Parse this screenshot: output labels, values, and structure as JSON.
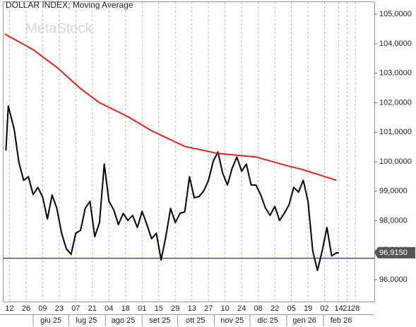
{
  "chart_data": {
    "type": "line",
    "title": "DOLLAR INDEX; Moving Average",
    "watermark": "MetaStock",
    "xlim": [
      "2025-05-07",
      "2026-03-16"
    ],
    "ylim": [
      95.26,
      105.41
    ],
    "yticks": [
      {
        "value": 96,
        "label": "96,0000"
      },
      {
        "value": 97,
        "label": "97,0000"
      },
      {
        "value": 98,
        "label": "98,0000"
      },
      {
        "value": 99,
        "label": "99,0000"
      },
      {
        "value": 100,
        "label": "100,0000"
      },
      {
        "value": 101,
        "label": "101,0000"
      },
      {
        "value": 102,
        "label": "102,0000"
      },
      {
        "value": 103,
        "label": "103,0000"
      },
      {
        "value": 104,
        "label": "104,0000"
      },
      {
        "value": 105,
        "label": "105,0000"
      }
    ],
    "xticks": [
      {
        "value": "2025-05-12",
        "label": "12"
      },
      {
        "value": "2025-05-26",
        "label": "26"
      },
      {
        "value": "2025-06-09",
        "label": "09"
      },
      {
        "value": "2025-06-23",
        "label": "23"
      },
      {
        "value": "2025-07-07",
        "label": "07"
      },
      {
        "value": "2025-07-21",
        "label": "21"
      },
      {
        "value": "2025-08-04",
        "label": "04"
      },
      {
        "value": "2025-08-18",
        "label": "18"
      },
      {
        "value": "2025-09-01",
        "label": "01"
      },
      {
        "value": "2025-09-15",
        "label": "15"
      },
      {
        "value": "2025-09-29",
        "label": "29"
      },
      {
        "value": "2025-10-13",
        "label": "13"
      },
      {
        "value": "2025-10-27",
        "label": "27"
      },
      {
        "value": "2025-11-10",
        "label": "10"
      },
      {
        "value": "2025-11-24",
        "label": "24"
      },
      {
        "value": "2025-12-08",
        "label": "08"
      },
      {
        "value": "2025-12-22",
        "label": "22"
      },
      {
        "value": "2026-01-05",
        "label": "05"
      },
      {
        "value": "2026-01-19",
        "label": "19"
      },
      {
        "value": "2026-02-02",
        "label": "02"
      },
      {
        "value": "2026-02-14",
        "label": "14"
      },
      {
        "value": "2026-02-21",
        "label": "21"
      },
      {
        "value": "2026-02-28",
        "label": "28"
      }
    ],
    "month_ticks": [
      {
        "value": "2025-06-01",
        "label": "giu 25"
      },
      {
        "value": "2025-07-01",
        "label": "lug 25"
      },
      {
        "value": "2025-08-01",
        "label": "ago 25"
      },
      {
        "value": "2025-09-01",
        "label": "set 25"
      },
      {
        "value": "2025-10-01",
        "label": "ott 25"
      },
      {
        "value": "2025-11-01",
        "label": "nov 25"
      },
      {
        "value": "2025-12-01",
        "label": "dic 25"
      },
      {
        "value": "2026-01-01",
        "label": "gen 26"
      },
      {
        "value": "2026-02-01",
        "label": "feb 26"
      }
    ],
    "grid": true,
    "reference_line": {
      "value": 96.73,
      "color": "#2b3a8f"
    },
    "price_tag": {
      "value": 96.915,
      "label": "96,9150"
    },
    "series": [
      {
        "color": "#000000",
        "x": [
          "2025-05-09",
          "2025-05-11",
          "2025-05-16",
          "2025-05-20",
          "2025-05-24",
          "2025-05-28",
          "2025-06-01",
          "2025-06-05",
          "2025-06-09",
          "2025-06-13",
          "2025-06-17",
          "2025-06-21",
          "2025-06-25",
          "2025-06-29",
          "2025-07-03",
          "2025-07-07",
          "2025-07-11",
          "2025-07-15",
          "2025-07-19",
          "2025-07-23",
          "2025-07-27",
          "2025-07-31",
          "2025-08-04",
          "2025-08-08",
          "2025-08-12",
          "2025-08-16",
          "2025-08-20",
          "2025-08-24",
          "2025-08-28",
          "2025-09-01",
          "2025-09-05",
          "2025-09-09",
          "2025-09-13",
          "2025-09-17",
          "2025-09-21",
          "2025-09-25",
          "2025-09-29",
          "2025-10-03",
          "2025-10-07",
          "2025-10-11",
          "2025-10-15",
          "2025-10-19",
          "2025-10-23",
          "2025-10-27",
          "2025-10-31",
          "2025-11-04",
          "2025-11-08",
          "2025-11-12",
          "2025-11-16",
          "2025-11-20",
          "2025-11-24",
          "2025-11-28",
          "2025-12-02",
          "2025-12-06",
          "2025-12-10",
          "2025-12-14",
          "2025-12-18",
          "2025-12-22",
          "2025-12-26",
          "2025-12-30",
          "2026-01-03",
          "2026-01-07",
          "2026-01-11",
          "2026-01-15",
          "2026-01-19",
          "2026-01-23",
          "2026-01-27",
          "2026-01-31",
          "2026-02-04",
          "2026-02-08",
          "2026-02-12",
          "2026-02-14"
        ],
        "values": [
          100.38,
          101.89,
          101.1,
          99.97,
          99.37,
          99.49,
          98.89,
          99.13,
          98.8,
          98.06,
          98.87,
          98.42,
          97.58,
          97.05,
          96.86,
          97.58,
          97.67,
          98.42,
          98.66,
          97.46,
          97.94,
          99.92,
          98.66,
          98.37,
          97.87,
          98.25,
          98.01,
          98.18,
          97.77,
          98.32,
          97.87,
          97.39,
          97.58,
          96.67,
          97.46,
          98.42,
          97.94,
          98.25,
          98.3,
          99.49,
          98.78,
          98.82,
          99.01,
          99.37,
          100.02,
          100.33,
          99.61,
          99.21,
          99.78,
          100.16,
          99.68,
          99.92,
          99.21,
          99.21,
          98.89,
          98.44,
          98.18,
          98.49,
          98.01,
          98.25,
          98.54,
          99.13,
          98.97,
          99.37,
          98.66,
          96.98,
          96.31,
          96.98,
          97.77,
          96.81,
          96.91,
          96.915
        ]
      },
      {
        "color": "#e0231b",
        "x": [
          "2025-05-08",
          "2025-06-01",
          "2025-06-21",
          "2025-07-11",
          "2025-07-27",
          "2025-08-20",
          "2025-09-09",
          "2025-10-07",
          "2025-11-04",
          "2025-12-06",
          "2026-01-03",
          "2026-01-15",
          "2026-02-12"
        ],
        "values": [
          104.33,
          103.8,
          103.2,
          102.48,
          102.0,
          101.53,
          101.05,
          100.52,
          100.28,
          100.16,
          99.85,
          99.73,
          99.37
        ]
      }
    ]
  }
}
